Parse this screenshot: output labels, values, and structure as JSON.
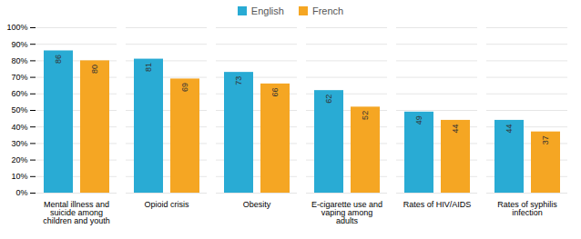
{
  "chart_data": {
    "type": "bar",
    "categories": [
      "Mental illness and\nsuicide among\nchildren and youth",
      "Opioid crisis",
      "Obesity",
      "E-cigarette use and\nvaping among\nadults",
      "Rates of HIV/AIDS",
      "Rates of syphilis\ninfection"
    ],
    "series": [
      {
        "name": "English",
        "color": "#29ABD4",
        "values": [
          86,
          81,
          73,
          62,
          49,
          44
        ]
      },
      {
        "name": "French",
        "color": "#F5A623",
        "values": [
          80,
          69,
          66,
          52,
          44,
          37
        ]
      }
    ],
    "ylim": [
      0,
      100
    ],
    "yticks": [
      {
        "value": 0,
        "label": "0%"
      },
      {
        "value": 10,
        "label": "10%"
      },
      {
        "value": 20,
        "label": "20%"
      },
      {
        "value": 30,
        "label": "30%"
      },
      {
        "value": 40,
        "label": "40%"
      },
      {
        "value": 50,
        "label": "50%"
      },
      {
        "value": 60,
        "label": "60%"
      },
      {
        "value": 70,
        "label": "70%"
      },
      {
        "value": 80,
        "label": "80%"
      },
      {
        "value": 90,
        "label": "90%"
      },
      {
        "value": 100,
        "label": "100%"
      }
    ],
    "grid": true,
    "legend": "top",
    "data_labels": true
  }
}
